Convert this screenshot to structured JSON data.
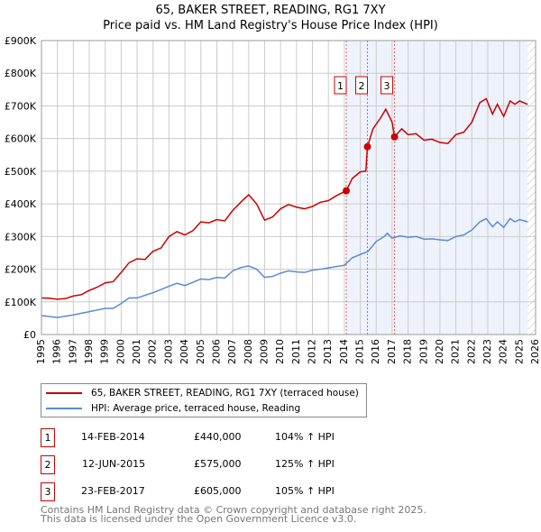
{
  "title": "65, BAKER STREET, READING, RG1 7XY",
  "subtitle": "Price paid vs. HM Land Registry's House Price Index (HPI)",
  "chart_data": {
    "type": "line",
    "title": "65, BAKER STREET, READING, RG1 7XY",
    "subtitle": "Price paid vs. HM Land Registry's House Price Index (HPI)",
    "xlim": [
      1995,
      2026
    ],
    "ylim": [
      0,
      900000
    ],
    "x_ticks": [
      "1995",
      "1996",
      "1997",
      "1998",
      "1999",
      "2000",
      "2001",
      "2002",
      "2003",
      "2004",
      "2005",
      "2006",
      "2007",
      "2008",
      "2009",
      "2010",
      "2011",
      "2012",
      "2013",
      "2014",
      "2015",
      "2016",
      "2017",
      "2018",
      "2019",
      "2020",
      "2021",
      "2022",
      "2023",
      "2024",
      "2025",
      "2026"
    ],
    "y_ticks": [
      {
        "v": 0,
        "label": "£0"
      },
      {
        "v": 100000,
        "label": "£100K"
      },
      {
        "v": 200000,
        "label": "£200K"
      },
      {
        "v": 300000,
        "label": "£300K"
      },
      {
        "v": 400000,
        "label": "£400K"
      },
      {
        "v": 500000,
        "label": "£500K"
      },
      {
        "v": 600000,
        "label": "£600K"
      },
      {
        "v": 700000,
        "label": "£700K"
      },
      {
        "v": 800000,
        "label": "£800K"
      },
      {
        "v": 900000,
        "label": "£900K"
      }
    ],
    "grid": true,
    "colors": {
      "property": "#cc0000",
      "hpi": "#5b8bd0",
      "shade": "#eef2fb"
    },
    "series": [
      {
        "name": "65, BAKER STREET, READING, RG1 7XY (terraced house)",
        "points": [
          [
            1995,
            112
          ],
          [
            1995.5,
            111
          ],
          [
            1996,
            108
          ],
          [
            1996.5,
            110
          ],
          [
            1997,
            118
          ],
          [
            1997.5,
            122
          ],
          [
            1998,
            135
          ],
          [
            1998.5,
            145
          ],
          [
            1999,
            158
          ],
          [
            1999.5,
            162
          ],
          [
            2000,
            190
          ],
          [
            2000.5,
            220
          ],
          [
            2001,
            232
          ],
          [
            2001.5,
            230
          ],
          [
            2002,
            255
          ],
          [
            2002.5,
            265
          ],
          [
            2003,
            300
          ],
          [
            2003.5,
            315
          ],
          [
            2004,
            305
          ],
          [
            2004.5,
            318
          ],
          [
            2005,
            345
          ],
          [
            2005.5,
            342
          ],
          [
            2006,
            352
          ],
          [
            2006.5,
            348
          ],
          [
            2007,
            380
          ],
          [
            2007.5,
            405
          ],
          [
            2008,
            428
          ],
          [
            2008.5,
            400
          ],
          [
            2009,
            350
          ],
          [
            2009.5,
            360
          ],
          [
            2010,
            385
          ],
          [
            2010.5,
            398
          ],
          [
            2011,
            390
          ],
          [
            2011.5,
            385
          ],
          [
            2012,
            392
          ],
          [
            2012.5,
            405
          ],
          [
            2013,
            410
          ],
          [
            2013.5,
            425
          ],
          [
            2014.12,
            440
          ],
          [
            2014.5,
            478
          ],
          [
            2015,
            498
          ],
          [
            2015.35,
            500
          ],
          [
            2015.45,
            575
          ],
          [
            2015.8,
            630
          ],
          [
            2016.3,
            665
          ],
          [
            2016.6,
            690
          ],
          [
            2017,
            650
          ],
          [
            2017.15,
            605
          ],
          [
            2017.6,
            630
          ],
          [
            2018,
            612
          ],
          [
            2018.5,
            615
          ],
          [
            2019,
            595
          ],
          [
            2019.5,
            598
          ],
          [
            2020,
            588
          ],
          [
            2020.5,
            585
          ],
          [
            2021,
            612
          ],
          [
            2021.5,
            620
          ],
          [
            2022,
            650
          ],
          [
            2022.5,
            710
          ],
          [
            2022.9,
            722
          ],
          [
            2023.3,
            675
          ],
          [
            2023.6,
            705
          ],
          [
            2024,
            668
          ],
          [
            2024.4,
            715
          ],
          [
            2024.7,
            705
          ],
          [
            2025,
            715
          ],
          [
            2025.5,
            705
          ]
        ]
      },
      {
        "name": "HPI: Average price, terraced house, Reading",
        "points": [
          [
            1995,
            58
          ],
          [
            1996,
            52
          ],
          [
            1997,
            60
          ],
          [
            1998,
            70
          ],
          [
            1999,
            80
          ],
          [
            1999.5,
            80
          ],
          [
            2000,
            95
          ],
          [
            2000.5,
            112
          ],
          [
            2001,
            112
          ],
          [
            2002,
            128
          ],
          [
            2003,
            148
          ],
          [
            2003.5,
            157
          ],
          [
            2004,
            150
          ],
          [
            2005,
            170
          ],
          [
            2005.5,
            168
          ],
          [
            2006,
            175
          ],
          [
            2006.5,
            173
          ],
          [
            2007,
            195
          ],
          [
            2007.5,
            205
          ],
          [
            2008,
            210
          ],
          [
            2008.5,
            200
          ],
          [
            2009,
            175
          ],
          [
            2009.5,
            178
          ],
          [
            2010,
            188
          ],
          [
            2010.5,
            195
          ],
          [
            2011,
            192
          ],
          [
            2011.5,
            190
          ],
          [
            2012,
            197
          ],
          [
            2012.5,
            200
          ],
          [
            2013,
            204
          ],
          [
            2013.5,
            208
          ],
          [
            2014,
            212
          ],
          [
            2014.5,
            235
          ],
          [
            2015,
            245
          ],
          [
            2015.5,
            255
          ],
          [
            2016,
            285
          ],
          [
            2016.5,
            300
          ],
          [
            2016.7,
            310
          ],
          [
            2017,
            295
          ],
          [
            2017.5,
            302
          ],
          [
            2018,
            298
          ],
          [
            2018.5,
            300
          ],
          [
            2019,
            292
          ],
          [
            2019.5,
            293
          ],
          [
            2020,
            290
          ],
          [
            2020.5,
            288
          ],
          [
            2021,
            300
          ],
          [
            2021.5,
            305
          ],
          [
            2022,
            320
          ],
          [
            2022.5,
            345
          ],
          [
            2022.9,
            355
          ],
          [
            2023.3,
            330
          ],
          [
            2023.6,
            345
          ],
          [
            2024,
            328
          ],
          [
            2024.4,
            355
          ],
          [
            2024.7,
            345
          ],
          [
            2025,
            352
          ],
          [
            2025.5,
            345
          ]
        ]
      }
    ],
    "y_units_multiplier": 1000,
    "sales": [
      {
        "n": "1",
        "x": 2014.12,
        "y": 440000
      },
      {
        "n": "2",
        "x": 2015.45,
        "y": 575000
      },
      {
        "n": "3",
        "x": 2017.15,
        "y": 605000
      }
    ],
    "shade_from": 2014.12,
    "hatch_from": 2025.5
  },
  "legend": {
    "property": "65, BAKER STREET, READING, RG1 7XY (terraced house)",
    "hpi": "HPI: Average price, terraced house, Reading"
  },
  "transactions": [
    {
      "n": "1",
      "date": "14-FEB-2014",
      "price": "£440,000",
      "hpi": "104% ↑ HPI"
    },
    {
      "n": "2",
      "date": "12-JUN-2015",
      "price": "£575,000",
      "hpi": "125% ↑ HPI"
    },
    {
      "n": "3",
      "date": "23-FEB-2017",
      "price": "£605,000",
      "hpi": "105% ↑ HPI"
    }
  ],
  "footer": [
    "Contains HM Land Registry data © Crown copyright and database right 2025.",
    "This data is licensed under the Open Government Licence v3.0."
  ]
}
